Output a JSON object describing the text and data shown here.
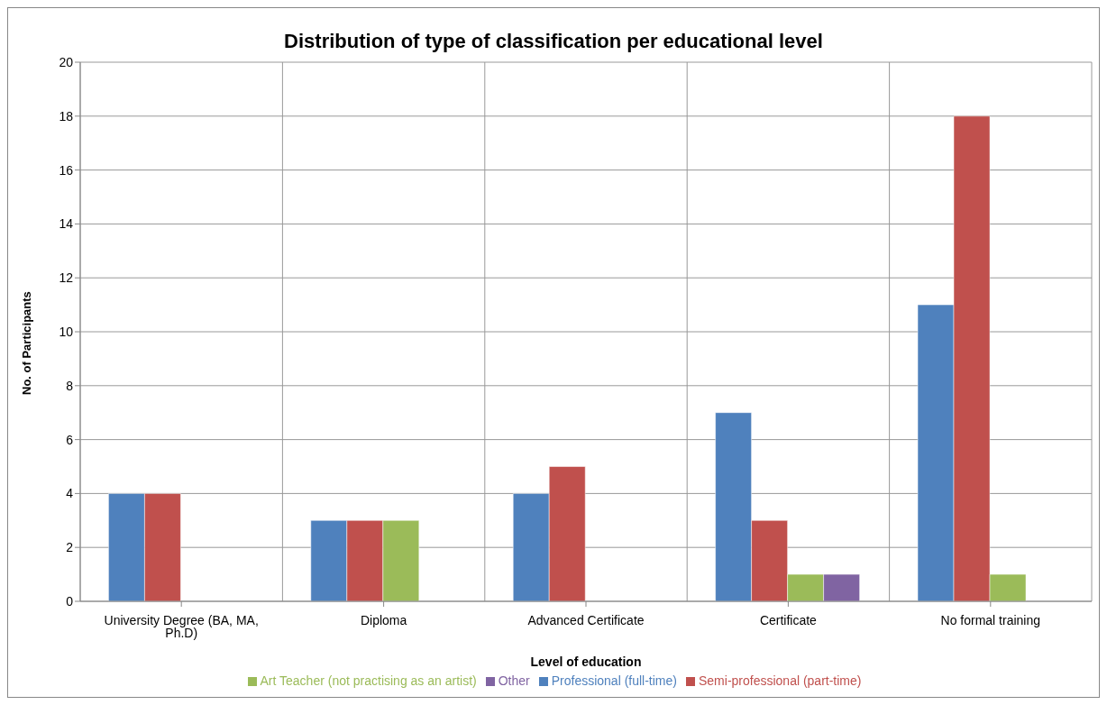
{
  "chart_data": {
    "type": "bar",
    "title": "Distribution of type of classification per educational level",
    "xlabel": "Level of education",
    "ylabel": "No. of Participants",
    "categories": [
      "University Degree (BA, MA, Ph.D)",
      "Diploma",
      "Advanced Certificate",
      "Certificate",
      "No formal training"
    ],
    "series": [
      {
        "name": "Professional (full-time)",
        "color": "#4f81bd",
        "values": [
          4,
          3,
          4,
          7,
          11
        ]
      },
      {
        "name": "Semi-professional (part-time)",
        "color": "#c0504d",
        "values": [
          4,
          3,
          5,
          3,
          18
        ]
      },
      {
        "name": "Art Teacher (not practising as an artist)",
        "color": "#9bbb59",
        "values": [
          0,
          3,
          0,
          1,
          1
        ]
      },
      {
        "name": "Other",
        "color": "#8064a2",
        "values": [
          0,
          0,
          0,
          1,
          0
        ]
      }
    ],
    "ylim": [
      0,
      20
    ],
    "yticks": [
      0,
      2,
      4,
      6,
      8,
      10,
      12,
      14,
      16,
      18,
      20
    ],
    "grid": true,
    "legend": "bottom"
  }
}
